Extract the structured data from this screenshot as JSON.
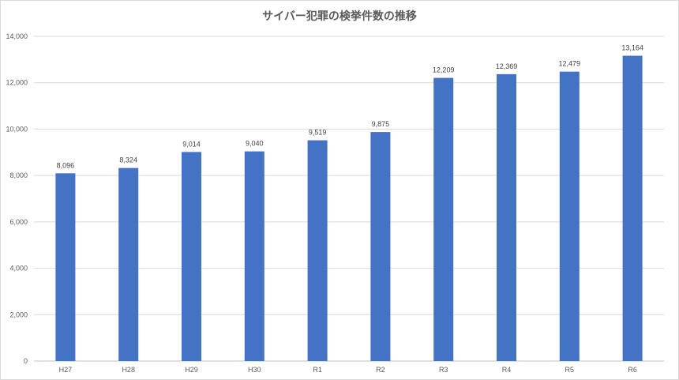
{
  "chart_data": {
    "type": "bar",
    "title": "サイバー犯罪の検挙件数の推移",
    "xlabel": "",
    "ylabel": "",
    "categories": [
      "H27",
      "H28",
      "H29",
      "H30",
      "R1",
      "R2",
      "R3",
      "R4",
      "R5",
      "R6"
    ],
    "values": [
      8096,
      8324,
      9014,
      9040,
      9519,
      9875,
      12209,
      12369,
      12479,
      13164
    ],
    "data_labels": [
      "8,096",
      "8,324",
      "9,014",
      "9,040",
      "9,519",
      "9,875",
      "12,209",
      "12,369",
      "12,479",
      "13,164"
    ],
    "ylim": [
      0,
      14000
    ],
    "yticks": [
      0,
      2000,
      4000,
      6000,
      8000,
      10000,
      12000,
      14000
    ],
    "ytick_labels": [
      "0",
      "2,000",
      "4,000",
      "6,000",
      "8,000",
      "10,000",
      "12,000",
      "14,000"
    ],
    "grid": true,
    "legend": "none",
    "bar_color": "#4472c4"
  }
}
